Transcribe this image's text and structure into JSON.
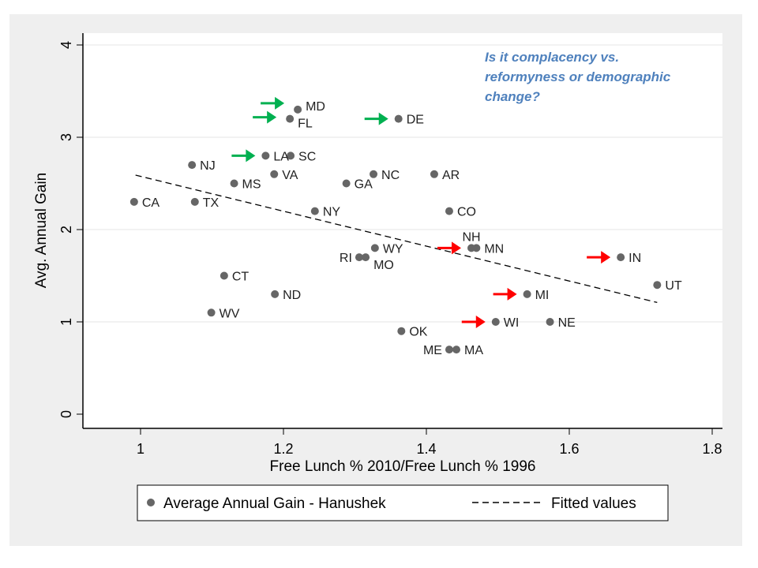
{
  "chart_data": {
    "type": "scatter",
    "title": "",
    "xlabel": "Free Lunch % 2010/Free Lunch % 1996",
    "ylabel": "Avg. Annual Gain",
    "xlim": [
      0.92,
      1.83
    ],
    "ylim": [
      -0.15,
      4.15
    ],
    "xticks": [
      "1",
      "1.2",
      "1.4",
      "1.6",
      "1.8"
    ],
    "yticks": [
      "0",
      "1",
      "2",
      "3",
      "4"
    ],
    "grid": "horizontal",
    "legend_position": "bottom",
    "series": [
      {
        "name": "Average Annual Gain - Hanushek",
        "color": "#666666",
        "points": [
          {
            "label": "CA",
            "x": 0.991,
            "y": 2.3
          },
          {
            "label": "TX",
            "x": 1.076,
            "y": 2.3
          },
          {
            "label": "NJ",
            "x": 1.072,
            "y": 2.7
          },
          {
            "label": "MS",
            "x": 1.131,
            "y": 2.5
          },
          {
            "label": "LA",
            "x": 1.175,
            "y": 2.8
          },
          {
            "label": "SC",
            "x": 1.21,
            "y": 2.8
          },
          {
            "label": "VA",
            "x": 1.187,
            "y": 2.6
          },
          {
            "label": "MD",
            "x": 1.22,
            "y": 3.3
          },
          {
            "label": "FL",
            "x": 1.209,
            "y": 3.2
          },
          {
            "label": "DE",
            "x": 1.361,
            "y": 3.2
          },
          {
            "label": "NC",
            "x": 1.326,
            "y": 2.6
          },
          {
            "label": "GA",
            "x": 1.288,
            "y": 2.5
          },
          {
            "label": "AR",
            "x": 1.411,
            "y": 2.6
          },
          {
            "label": "NY",
            "x": 1.244,
            "y": 2.2
          },
          {
            "label": "CO",
            "x": 1.432,
            "y": 2.2
          },
          {
            "label": "WY",
            "x": 1.328,
            "y": 1.8
          },
          {
            "label": "RI",
            "x": 1.306,
            "y": 1.7
          },
          {
            "label": "MO",
            "x": 1.315,
            "y": 1.7
          },
          {
            "label": "NH",
            "x": 1.463,
            "y": 1.8
          },
          {
            "label": "MN",
            "x": 1.47,
            "y": 1.8
          },
          {
            "label": "IN",
            "x": 1.672,
            "y": 1.7
          },
          {
            "label": "UT",
            "x": 1.723,
            "y": 1.4
          },
          {
            "label": "CT",
            "x": 1.117,
            "y": 1.5
          },
          {
            "label": "ND",
            "x": 1.188,
            "y": 1.3
          },
          {
            "label": "MI",
            "x": 1.541,
            "y": 1.3
          },
          {
            "label": "WV",
            "x": 1.099,
            "y": 1.1
          },
          {
            "label": "WI",
            "x": 1.497,
            "y": 1.0
          },
          {
            "label": "NE",
            "x": 1.573,
            "y": 1.0
          },
          {
            "label": "OK",
            "x": 1.365,
            "y": 0.9
          },
          {
            "label": "ME",
            "x": 1.432,
            "y": 0.7
          },
          {
            "label": "MA",
            "x": 1.442,
            "y": 0.7
          }
        ]
      },
      {
        "name": "Fitted values",
        "type": "line",
        "style": "dashed",
        "color": "#000000",
        "x": [
          0.993,
          1.723
        ],
        "y": [
          2.59,
          1.21
        ]
      }
    ],
    "arrows": [
      {
        "color": "#00b050",
        "points_to": "MD"
      },
      {
        "color": "#00b050",
        "points_to": "FL"
      },
      {
        "color": "#00b050",
        "points_to": "DE"
      },
      {
        "color": "#00b050",
        "points_to": "LA"
      },
      {
        "color": "#ff0000",
        "points_to": "NH"
      },
      {
        "color": "#ff0000",
        "points_to": "IN"
      },
      {
        "color": "#ff0000",
        "points_to": "MI"
      },
      {
        "color": "#ff0000",
        "points_to": "WI"
      }
    ],
    "annotation": "Is it complacency vs. reformyness or demographic change?"
  }
}
